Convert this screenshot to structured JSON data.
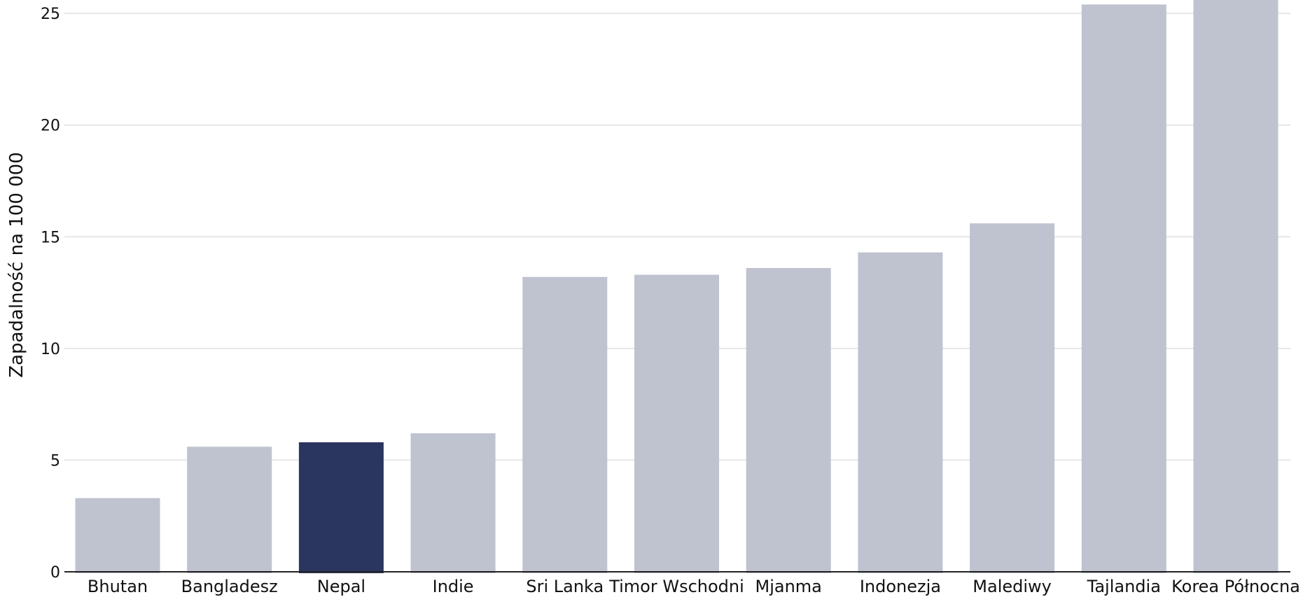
{
  "chart_data": {
    "type": "bar",
    "categories": [
      "Bhutan",
      "Bangladesz",
      "Nepal",
      "Indie",
      "Sri Lanka",
      "Timor Wschodni",
      "Mjanma",
      "Indonezja",
      "Malediwy",
      "Tajlandia",
      "Korea Północna"
    ],
    "values": [
      3.3,
      5.6,
      5.8,
      6.2,
      13.2,
      13.3,
      13.6,
      14.3,
      15.6,
      25.4,
      26.0
    ],
    "highlight": "Nepal",
    "title": "",
    "xlabel": "",
    "ylabel": "Zapadalność na 100 000",
    "ylim": [
      0,
      25.6
    ],
    "yticks": [
      0,
      5,
      10,
      15,
      20,
      25
    ],
    "grid": true,
    "colors": {
      "default_bar": "#bfc3cf",
      "highlight_bar": "#2b3660",
      "gridline": "#e6e6e6",
      "baseline": "#222222"
    }
  }
}
